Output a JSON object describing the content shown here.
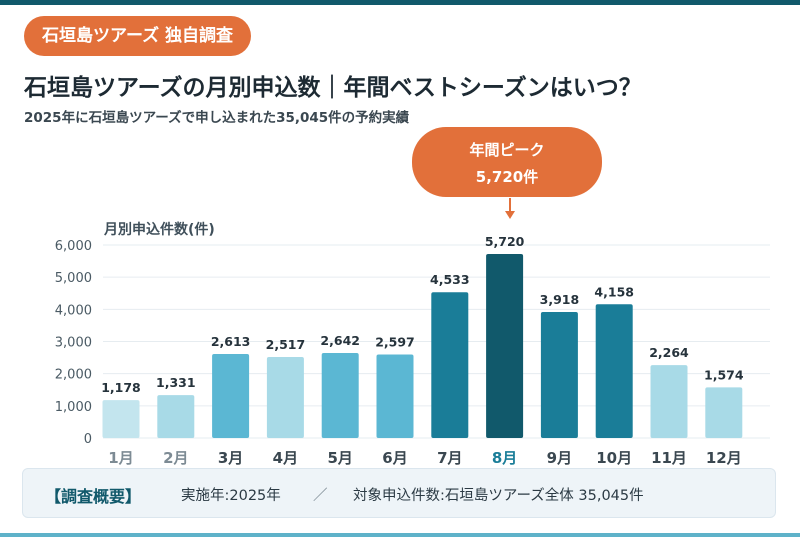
{
  "badge": "石垣島ツアーズ 独自調査",
  "title": "石垣島ツアーズの月別申込数｜年間ベストシーズンはいつ？",
  "subtitle": "2025年に石垣島ツアーズで申し込まれた35,045件の予約実績",
  "callout": {
    "label": "年間ピーク",
    "value": "5,720件"
  },
  "summary": {
    "heading": "【調査概要】",
    "item1": "実施年:2025年",
    "separator": "／",
    "item2": "対象申込件数:石垣島ツアーズ全体 35,045件"
  },
  "colors": {
    "accent": "#e2703a",
    "peak": "#11596b",
    "high": "#1a7d98",
    "mid": "#5bb7d3",
    "low": "#a8dae7"
  },
  "chart_data": {
    "type": "bar",
    "title": "石垣島ツアーズの月別申込数｜年間ベストシーズンはいつ？",
    "ylabel": "月別申込件数(件)",
    "xlabel": "",
    "categories": [
      "1月",
      "2月",
      "3月",
      "4月",
      "5月",
      "6月",
      "7月",
      "8月",
      "9月",
      "10月",
      "11月",
      "12月"
    ],
    "values": [
      1178,
      1331,
      2613,
      2517,
      2642,
      2597,
      4533,
      5720,
      3918,
      4158,
      2264,
      1574
    ],
    "value_labels": [
      "1,178",
      "1,331",
      "2,613",
      "2,517",
      "2,642",
      "2,597",
      "4,533",
      "5,720",
      "3,918",
      "4,158",
      "2,264",
      "1,574"
    ],
    "bar_colors": [
      "#c3e5ee",
      "#a8dae7",
      "#5bb7d3",
      "#a8dae7",
      "#5bb7d3",
      "#5bb7d3",
      "#1a7d98",
      "#11596b",
      "#1a7d98",
      "#1a7d98",
      "#a8dae7",
      "#a8dae7"
    ],
    "highlight_index": 7,
    "yticks": [
      "0",
      "1,000",
      "2,000",
      "3,000",
      "4,000",
      "5,000",
      "6,000"
    ],
    "ylim": [
      0,
      6000
    ],
    "grid": true
  }
}
